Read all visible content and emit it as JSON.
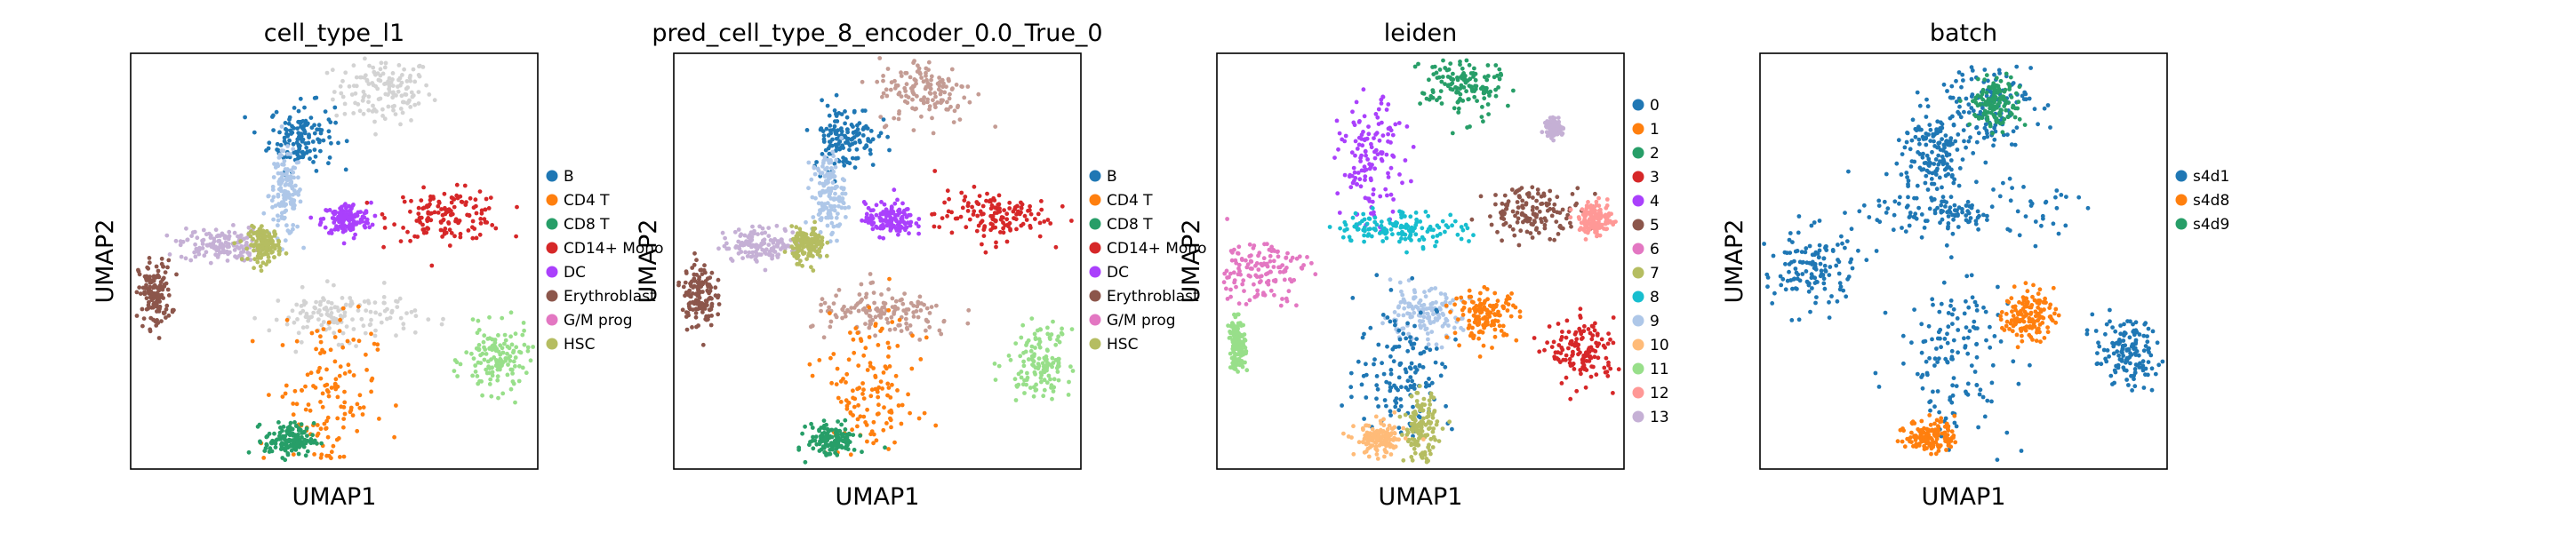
{
  "chart_data": [
    {
      "type": "scatter",
      "title": "cell_type_l1",
      "xlabel": "UMAP1",
      "ylabel": "UMAP2",
      "grid": false,
      "legend": "right",
      "legend_entries": [
        {
          "name": "B",
          "color": "#1f77b4"
        },
        {
          "name": "CD4 T",
          "color": "#ff7f0e"
        },
        {
          "name": "CD8 T",
          "color": "#279e68"
        },
        {
          "name": "CD14+ Mono",
          "color": "#d62728"
        },
        {
          "name": "DC",
          "color": "#aa40fc"
        },
        {
          "name": "Erythroblast",
          "color": "#8c564b"
        },
        {
          "name": "G/M prog",
          "color": "#e377c2"
        },
        {
          "name": "HSC",
          "color": "#b5bd61"
        }
      ],
      "clusters": [
        {
          "label": "",
          "color": "#d3d3d3",
          "x": 0.62,
          "y": 0.91,
          "sx": 0.06,
          "sy": 0.04
        },
        {
          "label": "B",
          "color": "#1f77b4",
          "x": 0.42,
          "y": 0.8,
          "sx": 0.04,
          "sy": 0.04
        },
        {
          "label": "B",
          "color": "#aec7e8",
          "x": 0.38,
          "y": 0.66,
          "sx": 0.02,
          "sy": 0.05
        },
        {
          "label": "CD14+ Mono",
          "color": "#d62728",
          "x": 0.78,
          "y": 0.61,
          "sx": 0.07,
          "sy": 0.03
        },
        {
          "label": "DC",
          "color": "#aa40fc",
          "x": 0.53,
          "y": 0.6,
          "sx": 0.03,
          "sy": 0.02
        },
        {
          "label": "",
          "color": "#c5b0d5",
          "x": 0.22,
          "y": 0.54,
          "sx": 0.05,
          "sy": 0.02
        },
        {
          "label": "Erythroblast",
          "color": "#8c564b",
          "x": 0.06,
          "y": 0.42,
          "sx": 0.02,
          "sy": 0.04
        },
        {
          "label": "HSC",
          "color": "#b5bd61",
          "x": 0.33,
          "y": 0.54,
          "sx": 0.02,
          "sy": 0.02
        },
        {
          "label": "",
          "color": "#d3d3d3",
          "x": 0.52,
          "y": 0.37,
          "sx": 0.09,
          "sy": 0.03
        },
        {
          "label": "",
          "color": "#98df8a",
          "x": 0.9,
          "y": 0.26,
          "sx": 0.04,
          "sy": 0.04
        },
        {
          "label": "CD4 T",
          "color": "#ff7f0e",
          "x": 0.48,
          "y": 0.18,
          "sx": 0.06,
          "sy": 0.1
        },
        {
          "label": "CD8 T",
          "color": "#279e68",
          "x": 0.39,
          "y": 0.07,
          "sx": 0.03,
          "sy": 0.02
        }
      ]
    },
    {
      "type": "scatter",
      "title": "pred_cell_type_8_encoder_0.0_True_0",
      "xlabel": "UMAP1",
      "ylabel": "UMAP2",
      "grid": false,
      "legend": "right",
      "legend_entries": [
        {
          "name": "B",
          "color": "#1f77b4"
        },
        {
          "name": "CD4 T",
          "color": "#ff7f0e"
        },
        {
          "name": "CD8 T",
          "color": "#279e68"
        },
        {
          "name": "CD14+ Mono",
          "color": "#d62728"
        },
        {
          "name": "DC",
          "color": "#aa40fc"
        },
        {
          "name": "Erythroblast",
          "color": "#8c564b"
        },
        {
          "name": "G/M prog",
          "color": "#e377c2"
        },
        {
          "name": "HSC",
          "color": "#b5bd61"
        }
      ],
      "clusters": [
        {
          "label": "",
          "color": "#c49c94",
          "x": 0.62,
          "y": 0.91,
          "sx": 0.06,
          "sy": 0.04
        },
        {
          "label": "B",
          "color": "#1f77b4",
          "x": 0.42,
          "y": 0.8,
          "sx": 0.04,
          "sy": 0.04
        },
        {
          "label": "B",
          "color": "#aec7e8",
          "x": 0.38,
          "y": 0.66,
          "sx": 0.02,
          "sy": 0.05
        },
        {
          "label": "CD14+ Mono",
          "color": "#d62728",
          "x": 0.78,
          "y": 0.61,
          "sx": 0.07,
          "sy": 0.03
        },
        {
          "label": "DC",
          "color": "#aa40fc",
          "x": 0.53,
          "y": 0.6,
          "sx": 0.03,
          "sy": 0.02
        },
        {
          "label": "",
          "color": "#c5b0d5",
          "x": 0.22,
          "y": 0.54,
          "sx": 0.05,
          "sy": 0.02
        },
        {
          "label": "Erythroblast",
          "color": "#8c564b",
          "x": 0.06,
          "y": 0.42,
          "sx": 0.02,
          "sy": 0.04
        },
        {
          "label": "HSC",
          "color": "#b5bd61",
          "x": 0.33,
          "y": 0.54,
          "sx": 0.02,
          "sy": 0.02
        },
        {
          "label": "",
          "color": "#c49c94",
          "x": 0.52,
          "y": 0.37,
          "sx": 0.09,
          "sy": 0.03
        },
        {
          "label": "",
          "color": "#98df8a",
          "x": 0.9,
          "y": 0.26,
          "sx": 0.04,
          "sy": 0.04
        },
        {
          "label": "CD4 T",
          "color": "#ff7f0e",
          "x": 0.48,
          "y": 0.18,
          "sx": 0.06,
          "sy": 0.1
        },
        {
          "label": "CD8 T",
          "color": "#279e68",
          "x": 0.39,
          "y": 0.07,
          "sx": 0.03,
          "sy": 0.02
        }
      ]
    },
    {
      "type": "scatter",
      "title": "leiden",
      "xlabel": "UMAP1",
      "ylabel": "UMAP2",
      "grid": false,
      "legend": "right",
      "legend_entries": [
        {
          "name": "0",
          "color": "#1f77b4"
        },
        {
          "name": "1",
          "color": "#ff7f0e"
        },
        {
          "name": "2",
          "color": "#279e68"
        },
        {
          "name": "3",
          "color": "#d62728"
        },
        {
          "name": "4",
          "color": "#aa40fc"
        },
        {
          "name": "5",
          "color": "#8c564b"
        },
        {
          "name": "6",
          "color": "#e377c2"
        },
        {
          "name": "7",
          "color": "#b5bd61"
        },
        {
          "name": "8",
          "color": "#17becf"
        },
        {
          "name": "9",
          "color": "#aec7e8"
        },
        {
          "name": "10",
          "color": "#ffbb78"
        },
        {
          "name": "11",
          "color": "#98df8a"
        },
        {
          "name": "12",
          "color": "#ff9896"
        },
        {
          "name": "13",
          "color": "#c5b0d5"
        }
      ],
      "clusters": [
        {
          "label": "2",
          "color": "#279e68",
          "x": 0.6,
          "y": 0.92,
          "sx": 0.05,
          "sy": 0.04
        },
        {
          "label": "4",
          "color": "#aa40fc",
          "x": 0.38,
          "y": 0.74,
          "sx": 0.04,
          "sy": 0.07
        },
        {
          "label": "5",
          "color": "#8c564b",
          "x": 0.78,
          "y": 0.62,
          "sx": 0.06,
          "sy": 0.03
        },
        {
          "label": "8",
          "color": "#17becf",
          "x": 0.45,
          "y": 0.58,
          "sx": 0.08,
          "sy": 0.02
        },
        {
          "label": "6",
          "color": "#e377c2",
          "x": 0.1,
          "y": 0.48,
          "sx": 0.06,
          "sy": 0.04
        },
        {
          "label": "9",
          "color": "#aec7e8",
          "x": 0.5,
          "y": 0.37,
          "sx": 0.05,
          "sy": 0.03
        },
        {
          "label": "1",
          "color": "#ff7f0e",
          "x": 0.66,
          "y": 0.37,
          "sx": 0.04,
          "sy": 0.03
        },
        {
          "label": "0",
          "color": "#1f77b4",
          "x": 0.46,
          "y": 0.24,
          "sx": 0.06,
          "sy": 0.08
        },
        {
          "label": "3",
          "color": "#d62728",
          "x": 0.9,
          "y": 0.28,
          "sx": 0.04,
          "sy": 0.04
        },
        {
          "label": "7",
          "color": "#b5bd61",
          "x": 0.5,
          "y": 0.1,
          "sx": 0.02,
          "sy": 0.04
        },
        {
          "label": "10",
          "color": "#ffbb78",
          "x": 0.4,
          "y": 0.07,
          "sx": 0.03,
          "sy": 0.02
        },
        {
          "label": "11",
          "color": "#98df8a",
          "x": 0.05,
          "y": 0.3,
          "sx": 0.01,
          "sy": 0.03
        },
        {
          "label": "12",
          "color": "#ff9896",
          "x": 0.93,
          "y": 0.6,
          "sx": 0.02,
          "sy": 0.02
        },
        {
          "label": "13",
          "color": "#c5b0d5",
          "x": 0.83,
          "y": 0.82,
          "sx": 0.01,
          "sy": 0.01
        }
      ]
    },
    {
      "type": "scatter",
      "title": "batch",
      "xlabel": "UMAP1",
      "ylabel": "UMAP2",
      "grid": false,
      "legend": "right",
      "legend_entries": [
        {
          "name": "s4d1",
          "color": "#1f77b4"
        },
        {
          "name": "s4d8",
          "color": "#ff7f0e"
        },
        {
          "name": "s4d9",
          "color": "#279e68"
        }
      ],
      "clusters": [
        {
          "label": "s4d1",
          "color": "#1f77b4",
          "x": 0.55,
          "y": 0.88,
          "sx": 0.06,
          "sy": 0.05
        },
        {
          "label": "s4d1",
          "color": "#1f77b4",
          "x": 0.42,
          "y": 0.76,
          "sx": 0.04,
          "sy": 0.05
        },
        {
          "label": "s4d1",
          "color": "#1f77b4",
          "x": 0.5,
          "y": 0.62,
          "sx": 0.12,
          "sy": 0.03
        },
        {
          "label": "s4d1",
          "color": "#1f77b4",
          "x": 0.12,
          "y": 0.48,
          "sx": 0.06,
          "sy": 0.05
        },
        {
          "label": "s4d1",
          "color": "#1f77b4",
          "x": 0.48,
          "y": 0.27,
          "sx": 0.07,
          "sy": 0.1
        },
        {
          "label": "s4d1",
          "color": "#1f77b4",
          "x": 0.9,
          "y": 0.28,
          "sx": 0.04,
          "sy": 0.04
        },
        {
          "label": "s4d8",
          "color": "#ff7f0e",
          "x": 0.66,
          "y": 0.37,
          "sx": 0.03,
          "sy": 0.03
        },
        {
          "label": "s4d8",
          "color": "#ff7f0e",
          "x": 0.42,
          "y": 0.08,
          "sx": 0.03,
          "sy": 0.02
        },
        {
          "label": "s4d9",
          "color": "#279e68",
          "x": 0.58,
          "y": 0.88,
          "sx": 0.03,
          "sy": 0.03
        }
      ]
    }
  ]
}
